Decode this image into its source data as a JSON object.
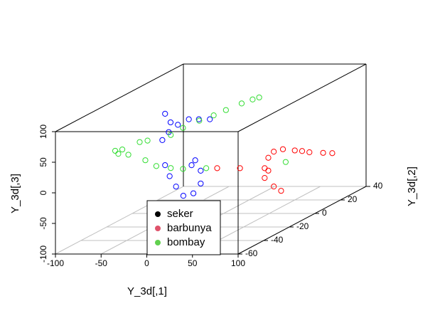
{
  "chart_data": {
    "type": "scatter3d",
    "x_label": "Y_3d[,1]",
    "y_label": "Y_3d[,2]",
    "z_label": "Y_3d[,3]",
    "xlim": [
      -100,
      100
    ],
    "ylim": [
      -60,
      40
    ],
    "zlim": [
      -100,
      100
    ],
    "xticks": [
      -100,
      -50,
      0,
      50,
      100
    ],
    "yticks": [
      -60,
      -40,
      -20,
      0,
      20,
      40
    ],
    "zticks": [
      -100,
      -50,
      0,
      50,
      100
    ],
    "grid": true,
    "legend": "bottom-center",
    "series": [
      {
        "name": "seker",
        "color": "#0000ff",
        "legend_color": "#000000",
        "x": [
          -36,
          -30,
          -32,
          -39,
          -22,
          -10,
          1,
          13,
          -3,
          3,
          3,
          -5,
          -16,
          -24,
          -31,
          -36,
          -7
        ],
        "y": [
          -20,
          -20,
          -20,
          -20,
          -20,
          -20,
          -20,
          -20,
          -20,
          -20,
          -20,
          -20,
          -20,
          -20,
          -20,
          -20,
          -20
        ],
        "z": [
          85,
          71,
          55,
          42,
          67,
          76,
          76,
          76,
          9,
          -8,
          -29,
          -45,
          -49,
          -34,
          -17,
          1,
          1
        ]
      },
      {
        "name": "barbunya",
        "color": "#ff0000",
        "legend_color": "#df536b",
        "x": [
          18,
          45,
          49,
          55,
          65,
          78,
          94,
          95,
          98,
          45,
          55,
          63,
          49,
          86,
          -7
        ],
        "y": [
          0,
          0,
          0,
          0,
          0,
          0,
          0,
          10,
          15,
          0,
          0,
          0,
          0,
          0,
          0
        ],
        "z": [
          -26,
          -26,
          -9,
          1,
          5,
          3,
          0,
          -12,
          -18,
          -42,
          -56,
          -63,
          -30,
          2,
          -26
        ]
      },
      {
        "name": "bombay",
        "color": "#33dd33",
        "legend_color": "#61d04f",
        "x": [
          -57,
          -52,
          -55,
          -51,
          -47,
          -44,
          -45,
          -40,
          -34,
          -29,
          -34,
          -29,
          -21,
          -15,
          -10,
          -4,
          1,
          4,
          40,
          -19
        ],
        "y": [
          -44,
          -42,
          -43,
          -38,
          -32,
          -28,
          -29,
          -24,
          -17,
          -11,
          -17,
          -11,
          -4,
          3,
          9,
          17,
          22,
          25,
          20,
          0
        ],
        "z": [
          51,
          51,
          45,
          38,
          52,
          50,
          19,
          4,
          -7,
          -15,
          47,
          52,
          56,
          57,
          59,
          61,
          62,
          62,
          -38,
          -26
        ]
      }
    ]
  }
}
